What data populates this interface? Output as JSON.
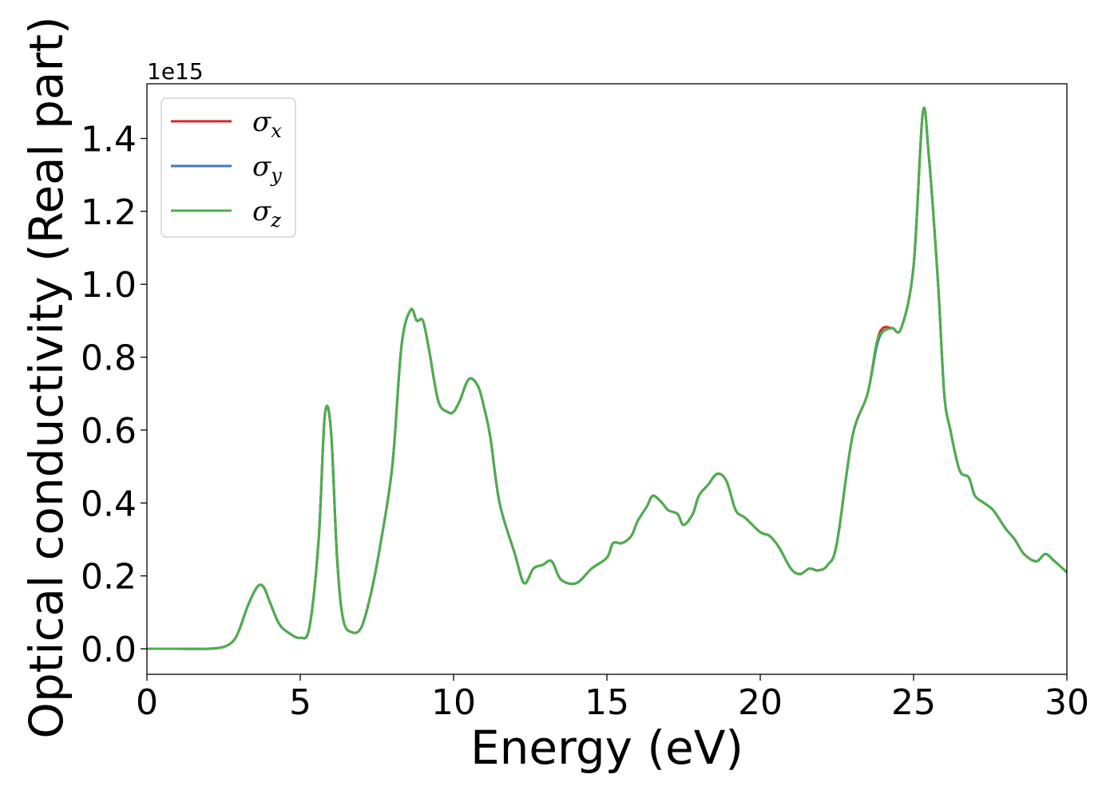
{
  "chart_data": {
    "type": "line",
    "xlabel": "Energy (eV)",
    "ylabel": "Optical conductivity (Real part)",
    "y_offset_label": "1e15",
    "xlim": [
      0,
      30
    ],
    "ylim": [
      -0.07,
      1.55
    ],
    "x_ticks": [
      0,
      5,
      10,
      15,
      20,
      25,
      30
    ],
    "x_tick_labels": [
      "0",
      "5",
      "10",
      "15",
      "20",
      "25",
      "30"
    ],
    "y_ticks": [
      0.0,
      0.2,
      0.4,
      0.6,
      0.8,
      1.0,
      1.2,
      1.4
    ],
    "y_tick_labels": [
      "0.0",
      "0.2",
      "0.4",
      "0.6",
      "0.8",
      "1.0",
      "1.2",
      "1.4"
    ],
    "grid": false,
    "legend_position": "top-left",
    "x": [
      0,
      1,
      2,
      2.5,
      2.8,
      3,
      3.3,
      3.6,
      3.8,
      4,
      4.3,
      4.6,
      5,
      5.3,
      5.6,
      5.8,
      6,
      6.2,
      6.4,
      6.7,
      7,
      7.3,
      7.6,
      8,
      8.3,
      8.6,
      8.8,
      9,
      9.2,
      9.5,
      9.8,
      10,
      10.2,
      10.5,
      10.8,
      11,
      11.2,
      11.5,
      12,
      12.3,
      12.6,
      12.9,
      13.2,
      13.5,
      14,
      14.5,
      15,
      15.2,
      15.5,
      15.8,
      16,
      16.3,
      16.5,
      16.8,
      17,
      17.3,
      17.5,
      17.8,
      18,
      18.3,
      18.6,
      18.9,
      19.2,
      19.5,
      20,
      20.3,
      20.6,
      21,
      21.3,
      21.6,
      21.9,
      22.2,
      22.5,
      23,
      23.5,
      23.8,
      24,
      24.3,
      24.6,
      25,
      25.3,
      25.5,
      25.8,
      26,
      26.2,
      26.5,
      26.8,
      27,
      27.3,
      27.6,
      28,
      28.3,
      28.6,
      29,
      29.3,
      29.6,
      30
    ],
    "series": [
      {
        "name": "σx",
        "color": "#d62728",
        "values": [
          0,
          0,
          0,
          0.005,
          0.02,
          0.05,
          0.12,
          0.17,
          0.17,
          0.13,
          0.07,
          0.045,
          0.03,
          0.06,
          0.3,
          0.64,
          0.6,
          0.25,
          0.08,
          0.045,
          0.06,
          0.15,
          0.28,
          0.5,
          0.83,
          0.93,
          0.9,
          0.9,
          0.82,
          0.68,
          0.65,
          0.65,
          0.68,
          0.74,
          0.72,
          0.66,
          0.58,
          0.4,
          0.26,
          0.18,
          0.22,
          0.23,
          0.24,
          0.19,
          0.18,
          0.22,
          0.25,
          0.29,
          0.29,
          0.31,
          0.35,
          0.39,
          0.42,
          0.4,
          0.38,
          0.37,
          0.34,
          0.37,
          0.42,
          0.45,
          0.48,
          0.46,
          0.38,
          0.36,
          0.32,
          0.31,
          0.28,
          0.22,
          0.205,
          0.22,
          0.215,
          0.23,
          0.29,
          0.58,
          0.7,
          0.84,
          0.88,
          0.88,
          0.88,
          1.05,
          1.47,
          1.35,
          1.0,
          0.7,
          0.6,
          0.49,
          0.47,
          0.42,
          0.4,
          0.38,
          0.33,
          0.3,
          0.26,
          0.24,
          0.26,
          0.24,
          0.21
        ]
      },
      {
        "name": "σy",
        "color": "#3a7dbf",
        "values": [
          0,
          0,
          0,
          0.005,
          0.02,
          0.05,
          0.12,
          0.17,
          0.17,
          0.13,
          0.07,
          0.045,
          0.03,
          0.06,
          0.3,
          0.64,
          0.6,
          0.25,
          0.08,
          0.045,
          0.06,
          0.15,
          0.28,
          0.5,
          0.83,
          0.93,
          0.9,
          0.9,
          0.82,
          0.68,
          0.65,
          0.65,
          0.68,
          0.74,
          0.72,
          0.66,
          0.58,
          0.4,
          0.26,
          0.18,
          0.22,
          0.23,
          0.24,
          0.19,
          0.18,
          0.22,
          0.25,
          0.29,
          0.29,
          0.31,
          0.35,
          0.39,
          0.42,
          0.4,
          0.38,
          0.37,
          0.34,
          0.37,
          0.42,
          0.45,
          0.48,
          0.46,
          0.38,
          0.36,
          0.32,
          0.31,
          0.28,
          0.22,
          0.205,
          0.22,
          0.215,
          0.23,
          0.29,
          0.58,
          0.7,
          0.83,
          0.87,
          0.88,
          0.88,
          1.05,
          1.47,
          1.35,
          1.0,
          0.7,
          0.6,
          0.49,
          0.47,
          0.42,
          0.4,
          0.38,
          0.33,
          0.3,
          0.26,
          0.24,
          0.26,
          0.24,
          0.21
        ]
      },
      {
        "name": "σz",
        "color": "#4daf4a",
        "values": [
          0,
          0,
          0,
          0.005,
          0.02,
          0.05,
          0.12,
          0.17,
          0.17,
          0.13,
          0.07,
          0.045,
          0.03,
          0.06,
          0.3,
          0.64,
          0.6,
          0.25,
          0.08,
          0.045,
          0.06,
          0.15,
          0.28,
          0.5,
          0.83,
          0.93,
          0.9,
          0.9,
          0.82,
          0.68,
          0.65,
          0.65,
          0.68,
          0.74,
          0.72,
          0.66,
          0.58,
          0.4,
          0.26,
          0.18,
          0.22,
          0.23,
          0.24,
          0.19,
          0.18,
          0.22,
          0.25,
          0.29,
          0.29,
          0.31,
          0.35,
          0.39,
          0.42,
          0.4,
          0.38,
          0.37,
          0.34,
          0.37,
          0.42,
          0.45,
          0.48,
          0.46,
          0.38,
          0.36,
          0.32,
          0.31,
          0.28,
          0.22,
          0.205,
          0.22,
          0.215,
          0.23,
          0.29,
          0.58,
          0.7,
          0.84,
          0.87,
          0.88,
          0.88,
          1.05,
          1.47,
          1.35,
          1.0,
          0.7,
          0.6,
          0.49,
          0.47,
          0.42,
          0.4,
          0.38,
          0.33,
          0.3,
          0.26,
          0.24,
          0.26,
          0.24,
          0.21
        ]
      }
    ]
  }
}
